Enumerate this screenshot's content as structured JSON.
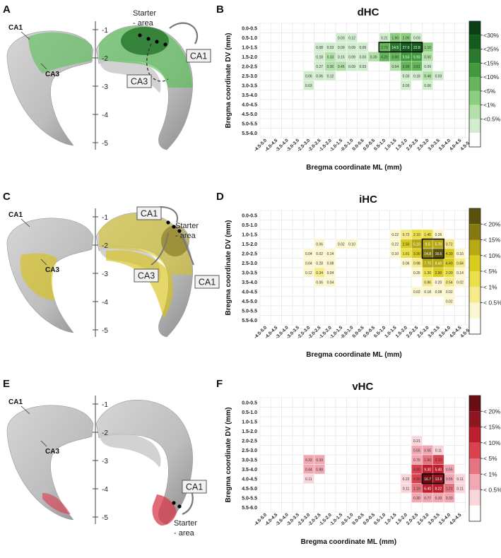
{
  "panel_letters": [
    "A",
    "B",
    "C",
    "D",
    "E",
    "F"
  ],
  "brain_panels": [
    {
      "letter": "A",
      "axis_ticks": [
        "-1",
        "-2",
        "-3",
        "-4",
        "-5"
      ],
      "label_ca1": "CA1",
      "label_ca3": "CA3",
      "callouts": [
        "CA1",
        "CA3"
      ],
      "starter": [
        "Starter",
        "- area"
      ],
      "color": "#4fbf4f"
    },
    {
      "letter": "C",
      "axis_ticks": [
        "-1",
        "-2",
        "-3",
        "-4",
        "-5"
      ],
      "label_ca1": "CA1",
      "label_ca3": "CA3",
      "callouts": [
        "CA1",
        "CA3",
        "CA1"
      ],
      "starter": [
        "Starter",
        "- area"
      ],
      "color": "#d8c21c"
    },
    {
      "letter": "E",
      "axis_ticks": [
        "-1",
        "-2",
        "-3",
        "-4",
        "-5"
      ],
      "label_ca1": "CA1",
      "label_ca3": "CA3",
      "callouts": [
        "CA1"
      ],
      "starter": [
        "Starter",
        "- area"
      ],
      "color": "#d83a4e"
    }
  ],
  "chart_data": [
    {
      "type": "heatmap",
      "panel": "B",
      "title": "dHC",
      "xlabel": "Bregma coordinate ML (mm)",
      "ylabel": "Bregma coordinate DV (mm)",
      "x_categories": [
        "-4.5-5.0",
        "-4.0-4.5",
        "-3.5-4.0",
        "-3.0-3.5",
        "-2.5-3.0",
        "-2.0-2.5",
        "-1.5-2.0",
        "-1.0-1.5",
        "-0.5-1.0",
        "0.0-0.5",
        "0.0-0.5",
        "0.5-1.0",
        "1.0-1.5",
        "1.5-2.0",
        "2.0-2.5",
        "2.5-3.0",
        "3.0-3.5",
        "3.5-4.0",
        "4.0-4.5",
        "4.5-5.0"
      ],
      "y_categories": [
        "0.0-0.5",
        "0.5-1.0",
        "1.0-1.5",
        "1.5-2.0",
        "2.0-2.5",
        "2.5-3.0",
        "3.0-3.5",
        "3.5-4.0",
        "4.0-4.5",
        "4.5-5.0",
        "5.0-5.5",
        "5.5-6.0"
      ],
      "cells": [
        [
          1,
          7,
          "0.03"
        ],
        [
          1,
          8,
          "0.12"
        ],
        [
          1,
          11,
          "0.21"
        ],
        [
          1,
          12,
          "1.90"
        ],
        [
          1,
          13,
          "2.00"
        ],
        [
          1,
          14,
          "0.03"
        ],
        [
          2,
          5,
          "0.08"
        ],
        [
          2,
          6,
          "0.03"
        ],
        [
          2,
          7,
          "0.09"
        ],
        [
          2,
          8,
          "0.09"
        ],
        [
          2,
          9,
          "0.09"
        ],
        [
          2,
          11,
          "2.70"
        ],
        [
          2,
          12,
          "14.5"
        ],
        [
          2,
          13,
          "27.0"
        ],
        [
          2,
          14,
          "22.8"
        ],
        [
          2,
          15,
          "1.10"
        ],
        [
          3,
          5,
          "0.18"
        ],
        [
          3,
          6,
          "0.33"
        ],
        [
          3,
          7,
          "0.15"
        ],
        [
          3,
          8,
          "0.09"
        ],
        [
          3,
          9,
          "0.03"
        ],
        [
          3,
          10,
          "0.30"
        ],
        [
          3,
          11,
          "4.20"
        ],
        [
          3,
          12,
          "3.90"
        ],
        [
          3,
          13,
          "5.63"
        ],
        [
          3,
          14,
          "5.93"
        ],
        [
          3,
          15,
          "0.50"
        ],
        [
          4,
          5,
          "0.27"
        ],
        [
          4,
          6,
          "0.30"
        ],
        [
          4,
          7,
          "0.45"
        ],
        [
          4,
          8,
          "0.09"
        ],
        [
          4,
          9,
          "0.03"
        ],
        [
          4,
          12,
          "0.54"
        ],
        [
          4,
          13,
          "3.99"
        ],
        [
          4,
          14,
          "3.81"
        ],
        [
          4,
          15,
          "0.09"
        ],
        [
          5,
          4,
          "0.06"
        ],
        [
          5,
          5,
          "0.06"
        ],
        [
          5,
          6,
          "0.12"
        ],
        [
          5,
          13,
          "0.03"
        ],
        [
          5,
          14,
          "0.18"
        ],
        [
          5,
          15,
          "0.48"
        ],
        [
          5,
          16,
          "0.03"
        ],
        [
          6,
          4,
          "0.03"
        ],
        [
          6,
          13,
          "0.03"
        ],
        [
          6,
          15,
          "0.06"
        ]
      ],
      "highlight": {
        "row0": 2,
        "col0": 11,
        "rows": 1,
        "cols": 4
      },
      "legend_labels": [
        "<30%",
        "<25%",
        "<15%",
        "<10%",
        "<5%",
        "<1%",
        "<0.5%"
      ],
      "palette": [
        "#ffffff",
        "#d2eccf",
        "#b3dfa9",
        "#8dcd7f",
        "#65b65a",
        "#3f9b3b",
        "#277a2a",
        "#145c1c",
        "#0c3f13"
      ]
    },
    {
      "type": "heatmap",
      "panel": "D",
      "title": "iHC",
      "xlabel": "Bregma coordinate ML (mm)",
      "ylabel": "Bregma coordinate DV (mm)",
      "x_categories": [
        "-4.5-5.0",
        "-4.0-4.5",
        "-3.5-4.0",
        "-3.0-3.5",
        "-2.5-3.0",
        "-2.0-2.5",
        "-1.5-2.0",
        "-1.0-1.5",
        "-0.5-1.0",
        "0.0-0.5",
        "0.0-0.5",
        "0.5-1.0",
        "1.0-1.5",
        "1.5-2.0",
        "2.0-2.5",
        "2.5-3.0",
        "3.0-3.5",
        "3.5-4.0",
        "4.0-4.5",
        "4.5-5.0"
      ],
      "y_categories": [
        "0.0-0.5",
        "0.5-1.0",
        "1.0-1.5",
        "1.5-2.0",
        "2.0-2.5",
        "2.5-3.0",
        "3.0-3.5",
        "3.5-4.0",
        "4.0-4.5",
        "4.5-5.0",
        "5.0-5.5",
        "5.5-6.0"
      ],
      "cells": [
        [
          2,
          12,
          "0.22"
        ],
        [
          2,
          13,
          "0.72"
        ],
        [
          2,
          14,
          "2.10"
        ],
        [
          2,
          15,
          "1.45"
        ],
        [
          2,
          16,
          "0.26"
        ],
        [
          3,
          5,
          "0.06"
        ],
        [
          3,
          7,
          "0.02"
        ],
        [
          3,
          8,
          "0.10"
        ],
        [
          3,
          12,
          "0.22"
        ],
        [
          3,
          13,
          "2.50"
        ],
        [
          3,
          14,
          "5.10"
        ],
        [
          3,
          15,
          "9.5"
        ],
        [
          3,
          16,
          "5.70"
        ],
        [
          3,
          17,
          "0.72"
        ],
        [
          4,
          4,
          "0.04"
        ],
        [
          4,
          5,
          "0.02"
        ],
        [
          4,
          6,
          "0.14"
        ],
        [
          4,
          12,
          "0.10"
        ],
        [
          4,
          13,
          "1.61"
        ],
        [
          4,
          14,
          "3.30"
        ],
        [
          4,
          15,
          "14.8"
        ],
        [
          4,
          16,
          "16.6"
        ],
        [
          4,
          17,
          "4.30"
        ],
        [
          4,
          18,
          "0.16"
        ],
        [
          5,
          4,
          "0.04"
        ],
        [
          5,
          5,
          "0.28"
        ],
        [
          5,
          6,
          "0.08"
        ],
        [
          5,
          13,
          "0.06"
        ],
        [
          5,
          14,
          "0.98"
        ],
        [
          5,
          15,
          "7.70"
        ],
        [
          5,
          16,
          "8.40"
        ],
        [
          5,
          17,
          "4.40"
        ],
        [
          5,
          18,
          "0.84"
        ],
        [
          6,
          4,
          "0.12"
        ],
        [
          6,
          5,
          "0.34"
        ],
        [
          6,
          6,
          "0.04"
        ],
        [
          6,
          14,
          "0.26"
        ],
        [
          6,
          15,
          "1.30"
        ],
        [
          6,
          16,
          "2.90"
        ],
        [
          6,
          17,
          "2.00"
        ],
        [
          6,
          18,
          "0.14"
        ],
        [
          7,
          5,
          "0.06"
        ],
        [
          7,
          6,
          "0.04"
        ],
        [
          7,
          15,
          "0.86"
        ],
        [
          7,
          16,
          "0.20"
        ],
        [
          7,
          17,
          "0.54"
        ],
        [
          7,
          18,
          "0.02"
        ],
        [
          8,
          14,
          "0.02"
        ],
        [
          8,
          15,
          "0.18"
        ],
        [
          8,
          16,
          "0.08"
        ],
        [
          8,
          17,
          "0.02"
        ],
        [
          9,
          17,
          "0.02"
        ]
      ],
      "highlight": {
        "row0": 3,
        "col0": 15,
        "rows": 2,
        "cols": 2
      },
      "legend_labels": [
        "< 20%",
        "< 15%",
        "< 10%",
        "< 5%",
        "< 1%",
        "< 0.5%"
      ],
      "palette": [
        "#ffffff",
        "#fbf6cf",
        "#f6ea8c",
        "#ece04a",
        "#d9cc1e",
        "#b6a914",
        "#857a12",
        "#5a520c"
      ]
    },
    {
      "type": "heatmap",
      "panel": "F",
      "title": "vHC",
      "xlabel": "Bregma coordinate ML (mm)",
      "ylabel": "Bregma coordinate DV (mm)",
      "x_categories": [
        "-4.5-5.0",
        "-4.0-4.5",
        "-3.5-4.0",
        "-3.0-3.5",
        "-2.5-3.0",
        "-2.0-2.5",
        "-1.5-2.0",
        "-1.0-1.5",
        "-0.5-1.0",
        "0.0-0.5",
        "0.0-0.5",
        "0.5-1.0",
        "1.0-1.5",
        "1.5-2.0",
        "2.0-2.5",
        "2.5-3.0",
        "3.0-3.5",
        "3.5-4.0",
        "4.0-4.5"
      ],
      "y_categories": [
        "0.0-0.5",
        "0.5-1.0",
        "1.0-1.5",
        "1.5-2.0",
        "2.0-2.5",
        "2.5-3.0",
        "3.0-3.5",
        "3.5-4.0",
        "4.0-4.5",
        "4.5-5.0",
        "5.0-5.5",
        "5.5-6.0"
      ],
      "cells": [
        [
          4,
          14,
          "0.21"
        ],
        [
          5,
          14,
          "0.55"
        ],
        [
          5,
          15,
          "0.55"
        ],
        [
          5,
          16,
          "0.11"
        ],
        [
          6,
          4,
          "0.33"
        ],
        [
          6,
          5,
          "0.33"
        ],
        [
          6,
          14,
          "0.70"
        ],
        [
          6,
          15,
          "1.60"
        ],
        [
          6,
          16,
          "3.10"
        ],
        [
          7,
          4,
          "0.44"
        ],
        [
          7,
          5,
          "0.88"
        ],
        [
          7,
          14,
          "4.90"
        ],
        [
          7,
          15,
          "9.30"
        ],
        [
          7,
          16,
          "5.40"
        ],
        [
          7,
          17,
          "0.55"
        ],
        [
          8,
          4,
          "0.11"
        ],
        [
          8,
          13,
          "0.22"
        ],
        [
          8,
          14,
          "4.90"
        ],
        [
          8,
          15,
          "16.7"
        ],
        [
          8,
          16,
          "13.9"
        ],
        [
          8,
          17,
          "0.55"
        ],
        [
          8,
          18,
          "0.11"
        ],
        [
          9,
          13,
          "0.11"
        ],
        [
          9,
          14,
          "1.10"
        ],
        [
          9,
          15,
          "6.40"
        ],
        [
          9,
          16,
          "8.22"
        ],
        [
          9,
          17,
          "1.21"
        ],
        [
          9,
          18,
          "0.11"
        ],
        [
          10,
          14,
          "0.30"
        ],
        [
          10,
          15,
          "0.77"
        ],
        [
          10,
          16,
          "0.33"
        ],
        [
          10,
          17,
          "0.33"
        ]
      ],
      "highlight": {
        "row0": 8,
        "col0": 15,
        "rows": 1,
        "cols": 2
      },
      "legend_labels": [
        "< 20%",
        "< 15%",
        "< 10%",
        "< 5%",
        "< 1%",
        "< 0.5%"
      ],
      "palette": [
        "#ffffff",
        "#f9d6db",
        "#f1a8b2",
        "#e47480",
        "#d8434f",
        "#bd1f2c",
        "#8f1620",
        "#6a0d15"
      ]
    }
  ]
}
